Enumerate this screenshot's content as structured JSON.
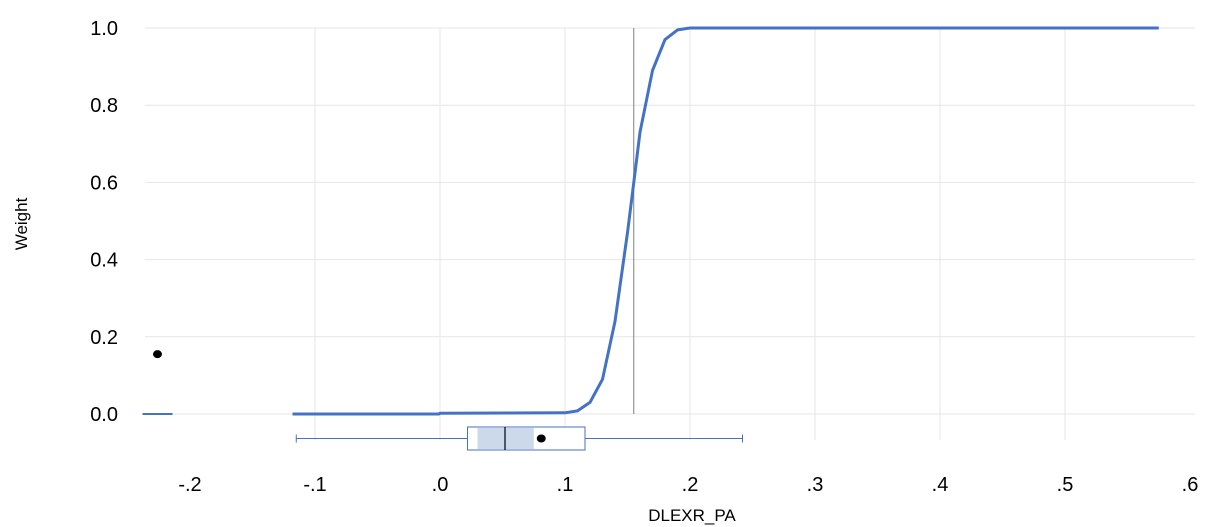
{
  "chart_data": {
    "type": "line",
    "xlabel": "DLEXR_PA",
    "ylabel": "Weight",
    "xlim": [
      -0.24,
      0.6
    ],
    "ylim": [
      -0.09,
      1.0
    ],
    "x_ticks": [
      -0.2,
      -0.1,
      0.0,
      0.1,
      0.2,
      0.3,
      0.4,
      0.5,
      0.6
    ],
    "x_tick_labels": [
      "-.2",
      "-.1",
      ".0",
      ".1",
      ".2",
      ".3",
      ".4",
      ".5",
      ".6"
    ],
    "y_ticks": [
      0.0,
      0.2,
      0.4,
      0.6,
      0.8,
      1.0
    ],
    "y_tick_labels": [
      "0.0",
      "0.2",
      "0.4",
      "0.6",
      "0.8",
      "1.0"
    ],
    "grid": true,
    "series": [
      {
        "color": "#4472c4",
        "points": [
          [
            -0.118,
            0.0
          ],
          [
            -0.001,
            0.0
          ],
          [
            0.0,
            0.002
          ],
          [
            0.1,
            0.003
          ],
          [
            0.11,
            0.008
          ],
          [
            0.12,
            0.03
          ],
          [
            0.13,
            0.09
          ],
          [
            0.14,
            0.24
          ],
          [
            0.15,
            0.47
          ],
          [
            0.155,
            0.6
          ],
          [
            0.16,
            0.73
          ],
          [
            0.17,
            0.89
          ],
          [
            0.18,
            0.97
          ],
          [
            0.19,
            0.995
          ],
          [
            0.2,
            1.0
          ],
          [
            0.575,
            1.0
          ]
        ]
      }
    ],
    "threshold_line": {
      "x": 0.155,
      "y_from": 0.0,
      "y_to": 1.0,
      "color": "#808080"
    },
    "outlier_legend": {
      "line": {
        "x_from": -0.238,
        "x_to": -0.214,
        "y": 0.0,
        "color": "#4472c4"
      },
      "dot": {
        "x": -0.226,
        "y": 0.155,
        "color": "#000000"
      }
    },
    "boxplot": {
      "whisker_low": -0.115,
      "q1": 0.022,
      "inner_low": 0.03,
      "median": 0.052,
      "inner_high": 0.075,
      "q3": 0.116,
      "whisker_high": 0.242,
      "mean": 0.081,
      "fill": "#ccd9ea",
      "stroke": "#4472c4"
    }
  }
}
